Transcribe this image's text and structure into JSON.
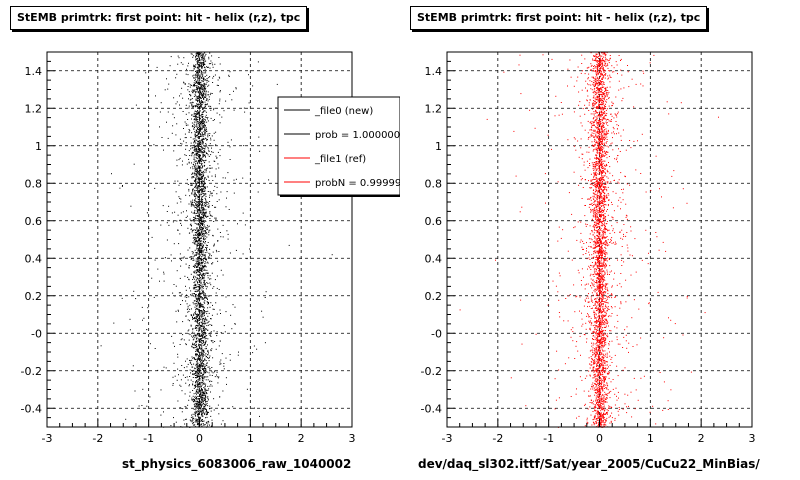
{
  "footer": "",
  "chart_data": [
    {
      "type": "scatter",
      "title": "StEMB primtrk: first point: hit - helix (r,z), tpc",
      "xlabel": "st_physics_6083006_raw_1040002",
      "ylabel": "",
      "xlim": [
        -3,
        3
      ],
      "ylim": [
        -0.5,
        1.5
      ],
      "xticks": [
        -3,
        -2,
        -1,
        0,
        1,
        2,
        3
      ],
      "yticks": [
        "-0.4",
        "-0.2",
        "-0",
        "0.2",
        "0.4",
        "0.6",
        "0.8",
        "1",
        "1.2",
        "1.4"
      ],
      "grid": true,
      "marker_color": "#000000",
      "distribution": {
        "center_x": 0,
        "core_width_x": 0.25,
        "tail_width_x": 0.8,
        "density": "uniform in y"
      },
      "legend": {
        "placement": "top-right",
        "entries": [
          {
            "label": "_file0 (new)",
            "color": "#000000"
          },
          {
            "label": "prob = 1.000000",
            "color": "#000000"
          },
          {
            "label": "_file1 (ref)",
            "color": "#ff0000"
          },
          {
            "label": "probN = 0.999996",
            "color": "#ff0000"
          }
        ]
      }
    },
    {
      "type": "scatter",
      "title": "StEMB primtrk: first point: hit - helix (r,z), tpc",
      "xlabel": "dev/daq_sl302.ittf/Sat/year_2005/CuCu22_MinBias/",
      "ylabel": "",
      "xlim": [
        -3,
        3
      ],
      "ylim": [
        -0.5,
        1.5
      ],
      "xticks": [
        -3,
        -2,
        -1,
        0,
        1,
        2,
        3
      ],
      "yticks": [
        "-0.4",
        "-0.2",
        "-0",
        "0.2",
        "0.4",
        "0.6",
        "0.8",
        "1",
        "1.2",
        "1.4"
      ],
      "grid": true,
      "marker_color": "#ff0000",
      "distribution": {
        "center_x": 0,
        "core_width_x": 0.25,
        "tail_width_x": 0.8,
        "density": "uniform in y"
      }
    }
  ]
}
